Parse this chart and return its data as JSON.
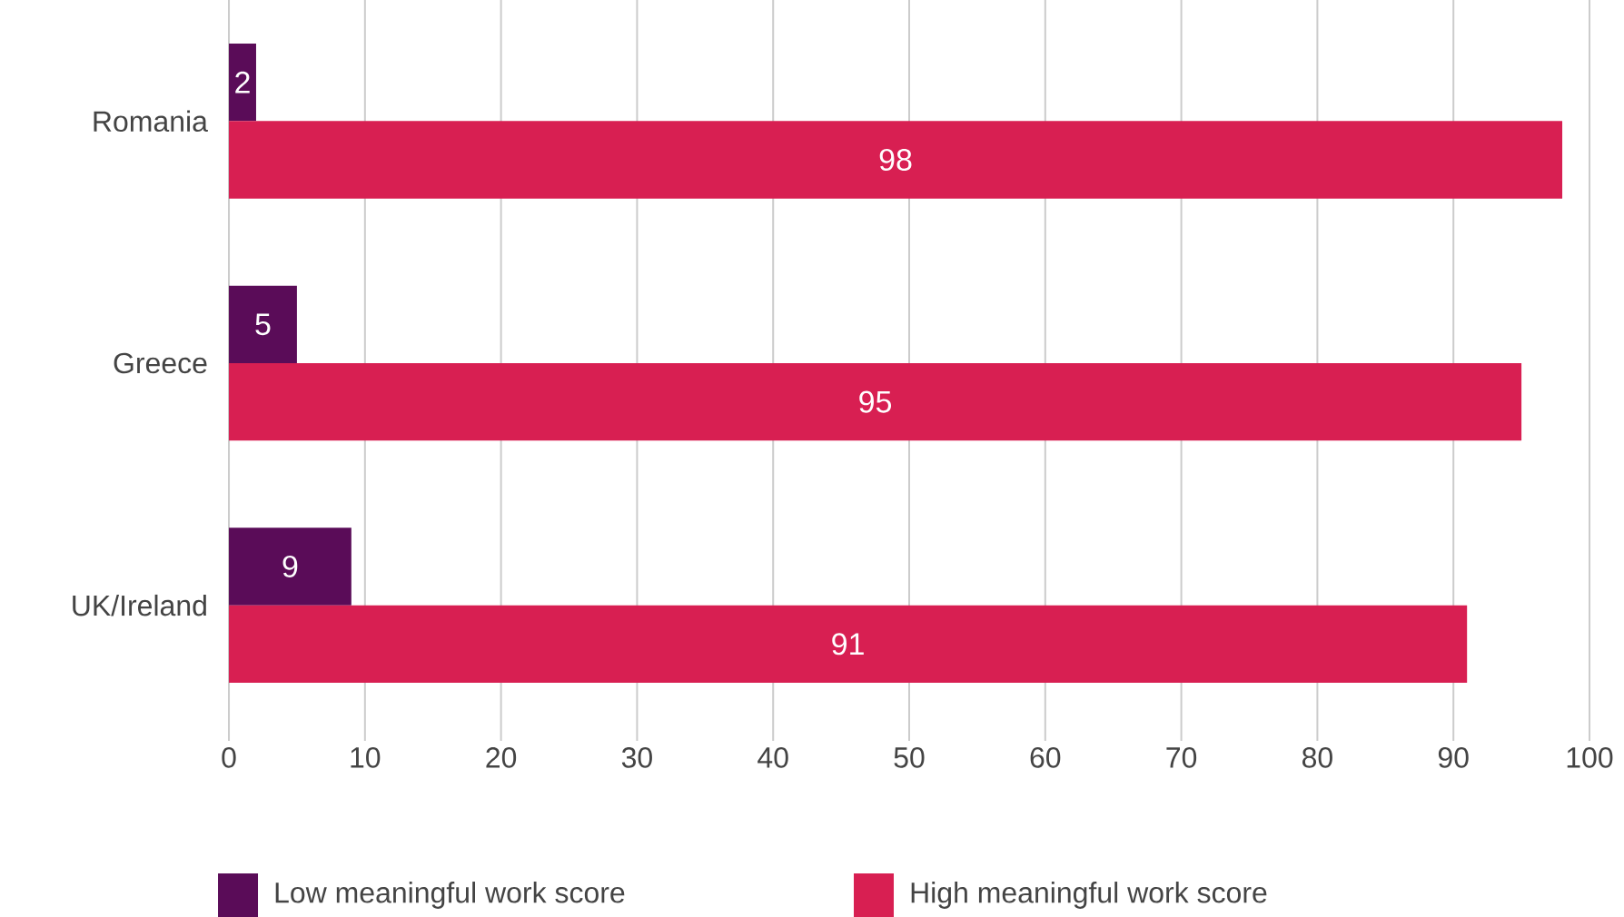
{
  "chart_data": {
    "type": "bar",
    "orientation": "horizontal",
    "categories": [
      "Romania",
      "Greece",
      "UK/Ireland"
    ],
    "series": [
      {
        "name": "Low meaningful work score",
        "color": "#5a0c58",
        "values": [
          2,
          5,
          9
        ]
      },
      {
        "name": "High meaningful work score",
        "color": "#d81f52",
        "values": [
          98,
          95,
          91
        ]
      }
    ],
    "xlim": [
      0,
      100
    ],
    "xticks": [
      0,
      10,
      20,
      30,
      40,
      50,
      60,
      70,
      80,
      90,
      100
    ],
    "grid": "x",
    "legend": "bottom",
    "data_labels": true
  }
}
